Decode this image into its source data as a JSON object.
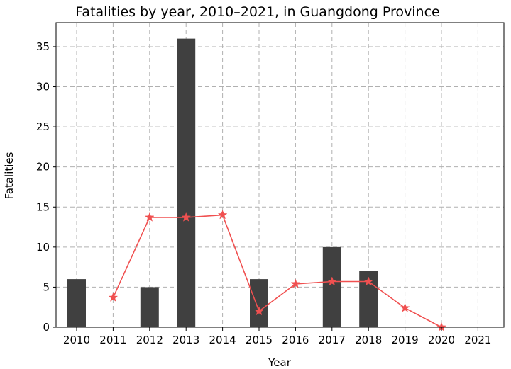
{
  "chart_data": {
    "type": "bar+line",
    "title": "Fatalities by year, 2010–2021, in Guangdong Province",
    "xlabel": "Year",
    "ylabel": "Fatalities",
    "categories": [
      "2010",
      "2011",
      "2012",
      "2013",
      "2014",
      "2015",
      "2016",
      "2017",
      "2018",
      "2019",
      "2020",
      "2021"
    ],
    "ylim": [
      0,
      38
    ],
    "yticks": [
      0,
      5,
      10,
      15,
      20,
      25,
      30,
      35
    ],
    "grid": true,
    "series": [
      {
        "kind": "bar",
        "color": "#404040",
        "values": [
          6,
          0,
          5,
          36,
          0,
          6,
          0,
          10,
          7,
          0,
          0,
          0
        ]
      },
      {
        "kind": "line",
        "color": "#f05050",
        "marker": "star",
        "values": [
          null,
          3.7,
          13.7,
          13.7,
          14.0,
          2.0,
          5.4,
          5.7,
          5.7,
          2.4,
          0.0,
          null
        ]
      }
    ]
  }
}
